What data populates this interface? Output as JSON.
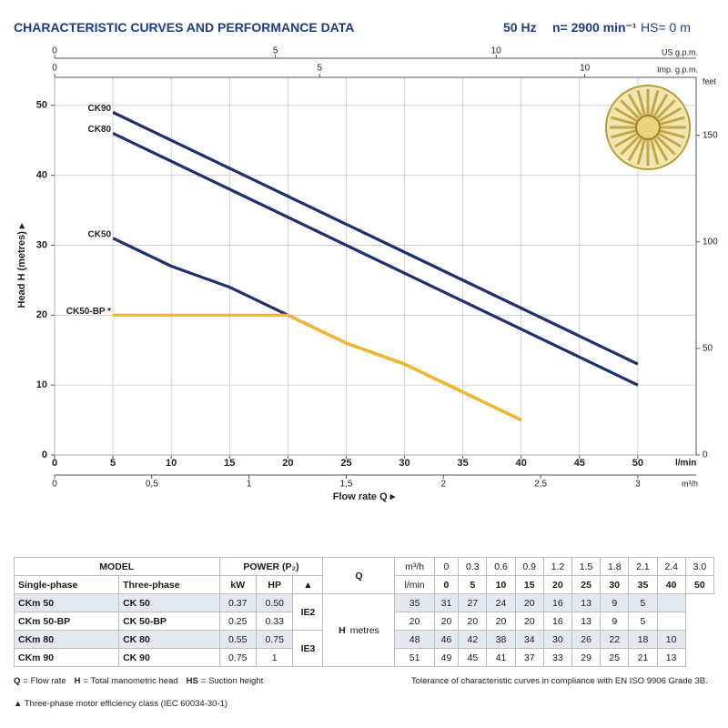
{
  "header": {
    "title": "CHARACTERISTIC CURVES AND PERFORMANCE DATA",
    "frequency": "50 Hz",
    "speed": "n= 2900 min⁻¹",
    "suction": "HS= 0 m"
  },
  "chart_data": {
    "type": "line",
    "xlabel": "Flow rate Q ▸",
    "ylabel": "Head H (metres) ▸",
    "xunit": "l/min",
    "x": [
      5,
      10,
      15,
      20,
      25,
      30,
      35,
      40,
      50
    ],
    "series": [
      {
        "name": "CK90",
        "color": "#1d2f6f",
        "values": [
          49,
          45,
          41,
          37,
          33,
          29,
          25,
          21,
          13
        ]
      },
      {
        "name": "CK80",
        "color": "#1d2f6f",
        "values": [
          46,
          42,
          38,
          34,
          30,
          26,
          22,
          18,
          10
        ]
      },
      {
        "name": "CK50",
        "color": "#1d2f6f",
        "values": [
          31,
          27,
          24,
          20,
          16,
          13,
          9,
          5,
          null
        ]
      },
      {
        "name": "CK50-BP *",
        "color": "#f5b820",
        "values": [
          20,
          20,
          20,
          20,
          16,
          13,
          9,
          5,
          null
        ]
      }
    ],
    "xlim": [
      0,
      55
    ],
    "ylim": [
      0,
      54
    ],
    "xticks": [
      0,
      5,
      10,
      15,
      20,
      25,
      30,
      35,
      40,
      45,
      50
    ],
    "yticks": [
      0,
      10,
      20,
      30,
      40,
      50
    ],
    "grid": true,
    "secondary_axes": [
      {
        "label": "US g.p.m.",
        "side": "top",
        "lim": [
          0,
          14.53
        ],
        "ticks": [
          0,
          5,
          10
        ]
      },
      {
        "label": "Imp. g.p.m.",
        "side": "top",
        "lim": [
          0,
          12.1
        ],
        "ticks": [
          0,
          5,
          10
        ]
      },
      {
        "label": "m³/h",
        "side": "bottom",
        "lim": [
          0,
          3.3
        ],
        "ticks": [
          0,
          {
            "value": 0.5,
            "label": "0,5"
          },
          1,
          {
            "value": 1.5,
            "label": "1,5"
          },
          2,
          {
            "value": 2.5,
            "label": "2,5"
          },
          3
        ]
      },
      {
        "label": "feet",
        "side": "right",
        "lim": [
          0,
          177.2
        ],
        "ticks": [
          0,
          50,
          100,
          150
        ]
      }
    ]
  },
  "table": {
    "model_header": "MODEL",
    "power_header": "POWER (P₂)",
    "q_header": "Q",
    "h_header": "H",
    "h_unit": "metres",
    "subheaders": [
      "Single-phase",
      "Three-phase",
      "kW",
      "HP",
      "▲"
    ],
    "q_units": [
      "m³/h",
      "l/min"
    ],
    "q_m3h": [
      "0",
      "0.3",
      "0.6",
      "0.9",
      "1.2",
      "1.5",
      "1.8",
      "2.1",
      "2.4",
      "3.0"
    ],
    "q_lmin": [
      "0",
      "5",
      "10",
      "15",
      "20",
      "25",
      "30",
      "35",
      "40",
      "50"
    ],
    "efficiency": [
      "IE2",
      "IE3"
    ],
    "rows": [
      {
        "single": "CKm 50",
        "three": "CK 50",
        "kw": "0.37",
        "hp": "0.50",
        "h": [
          "35",
          "31",
          "27",
          "24",
          "20",
          "16",
          "13",
          "9",
          "5",
          null
        ]
      },
      {
        "single": "CKm 50-BP",
        "three": "CK 50-BP",
        "kw": "0.25",
        "hp": "0.33",
        "h": [
          "20",
          "20",
          "20",
          "20",
          "20",
          "16",
          "13",
          "9",
          "5",
          null
        ]
      },
      {
        "single": "CKm 80",
        "three": "CK 80",
        "kw": "0.55",
        "hp": "0.75",
        "h": [
          "48",
          "46",
          "42",
          "38",
          "34",
          "30",
          "26",
          "22",
          "18",
          "10"
        ]
      },
      {
        "single": "CKm 90",
        "three": "CK 90",
        "kw": "0.75",
        "hp": "1",
        "h": [
          "51",
          "49",
          "45",
          "41",
          "37",
          "33",
          "29",
          "25",
          "21",
          "13"
        ]
      }
    ]
  },
  "footer": {
    "legend": [
      {
        "symbol": "Q",
        "text": "= Flow rate"
      },
      {
        "symbol": "H",
        "text": "= Total manometric head"
      },
      {
        "symbol": "HS",
        "text": "= Suction height"
      }
    ],
    "tolerance": "Tolerance of characteristic curves in compliance with EN ISO 9906 Grade 3B.",
    "efficiency_note": "▲  Three-phase motor efficiency class (IEC 60034-30-1)"
  }
}
